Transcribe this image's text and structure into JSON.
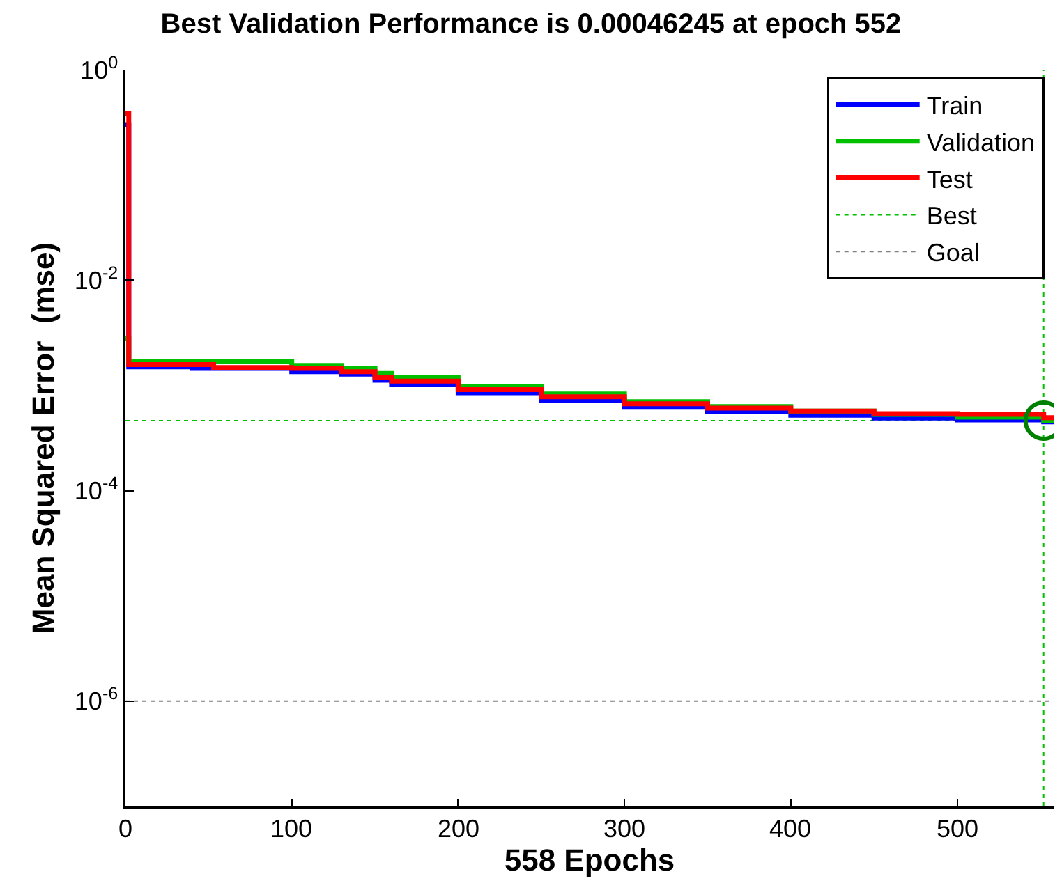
{
  "chart_data": {
    "type": "step",
    "title": "Best Validation Performance is 0.00046245 at epoch 552",
    "xlabel": "558 Epochs",
    "ylabel": "Mean Squared Error  (mse)",
    "log": "y",
    "grid": false,
    "legend": "top right",
    "line_style": "solid",
    "marker": "none",
    "xlim": [
      0,
      558
    ],
    "xticks": [
      0,
      100,
      200,
      300,
      400,
      500
    ],
    "ylim": [
      1e-07,
      1
    ],
    "yticks": [
      {
        "value": 1e-06,
        "label": "10$^{-6}$"
      },
      {
        "value": 0.0001,
        "label": "10$^{-4}$"
      },
      {
        "value": 0.01,
        "label": "10$^{-2}$"
      },
      {
        "value": 1,
        "label": "10$^{0}$"
      }
    ],
    "series": [
      {
        "name": "Train",
        "color": "#0000ff",
        "x": [
          0,
          2,
          40,
          100,
          130,
          150,
          160,
          200,
          250,
          300,
          350,
          400,
          450,
          500,
          552,
          558
        ],
        "values": [
          0.3,
          0.0015,
          0.00145,
          0.00135,
          0.00128,
          0.00112,
          0.00102,
          0.00085,
          0.00072,
          0.00062,
          0.00056,
          0.00052,
          0.00049,
          0.00047,
          0.00045,
          0.00045
        ]
      },
      {
        "name": "Validation",
        "color": "#00c000",
        "x": [
          0,
          2,
          40,
          100,
          130,
          150,
          160,
          200,
          250,
          300,
          350,
          400,
          450,
          500,
          552,
          558
        ],
        "values": [
          0.0028,
          0.0017,
          0.0017,
          0.00155,
          0.00145,
          0.0013,
          0.00118,
          0.00098,
          0.00083,
          0.0007,
          0.00063,
          0.00057,
          0.00053,
          0.0005,
          0.00046245,
          0.00046245
        ]
      },
      {
        "name": "Test",
        "color": "#ff0000",
        "x": [
          0,
          2,
          40,
          53,
          100,
          130,
          150,
          160,
          200,
          250,
          300,
          350,
          400,
          450,
          500,
          552,
          558
        ],
        "values": [
          0.386,
          0.00158,
          0.00158,
          0.00148,
          0.00145,
          0.00135,
          0.0012,
          0.0011,
          0.00091,
          0.00078,
          0.00067,
          0.00061,
          0.00057,
          0.00054,
          0.00053,
          0.000493,
          0.000493
        ]
      },
      {
        "type": "scatter",
        "marker": "circle",
        "color": "#008000",
        "x": [
          552
        ],
        "values": [
          0.00046245
        ]
      }
    ],
    "ref_lines": [
      {
        "axis": "x",
        "value": 552,
        "label": "Best",
        "color": "#00c000",
        "line_style": "dotted"
      },
      {
        "axis": "y",
        "value": 0.00046245,
        "color": "#00c000",
        "line_style": "dotted"
      },
      {
        "axis": "y",
        "value": 1e-06,
        "label": "Goal",
        "color": "#808080",
        "line_style": "dotted"
      }
    ]
  }
}
